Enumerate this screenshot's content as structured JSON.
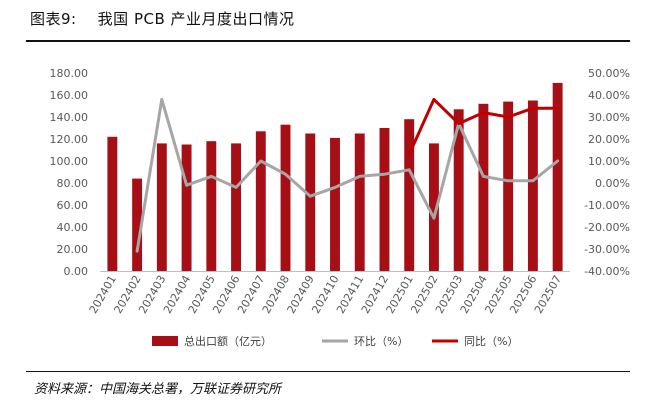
{
  "header": {
    "title": "图表9:    我国 PCB 产业月度出口情况"
  },
  "source": "资料来源：中国海关总署，万联证券研究所",
  "colors": {
    "bar": "#a50f15",
    "mom": "#a6a6a6",
    "yoy": "#c00000",
    "axis_text": "#595959",
    "grid": "#d9d9d9"
  },
  "chart_data": {
    "type": "bar",
    "categories": [
      "202401",
      "202402",
      "202403",
      "202404",
      "202405",
      "202406",
      "202407",
      "202408",
      "202409",
      "202410",
      "202411",
      "202412",
      "202501",
      "202502",
      "202503",
      "202504",
      "202505",
      "202506",
      "202507"
    ],
    "y_left": {
      "ticks": [
        "180.00",
        "160.00",
        "140.00",
        "120.00",
        "100.00",
        "80.00",
        "60.00",
        "40.00",
        "20.00",
        "0.00"
      ],
      "range": [
        0,
        180
      ]
    },
    "y_right": {
      "ticks": [
        "50.00%",
        "40.00%",
        "30.00%",
        "20.00%",
        "10.00%",
        "0.00%",
        "-10.00%",
        "-20.00%",
        "-30.00%",
        "-40.00%"
      ],
      "range": [
        -40,
        50
      ]
    },
    "series": [
      {
        "name": "总出口额（亿元）",
        "kind": "bar",
        "axis": "left",
        "values": [
          122.0,
          84.0,
          116.0,
          115.0,
          118.0,
          116.0,
          127.0,
          133.0,
          125.0,
          121.0,
          125.0,
          130.0,
          138.0,
          116.0,
          147.0,
          152.0,
          154.0,
          155.0,
          171.0
        ]
      },
      {
        "name": "环比（%）",
        "kind": "line",
        "axis": "right",
        "values": [
          null,
          -31.0,
          38.0,
          -1.0,
          3.0,
          -2.0,
          10.0,
          4.0,
          -6.0,
          -2.0,
          3.0,
          4.0,
          6.0,
          -16.0,
          27.0,
          3.0,
          1.0,
          1.0,
          10.0
        ]
      },
      {
        "name": "同比（%）",
        "kind": "line",
        "axis": "right",
        "values": [
          null,
          null,
          null,
          null,
          null,
          null,
          null,
          null,
          null,
          null,
          null,
          null,
          13.0,
          38.0,
          27.0,
          32.0,
          30.0,
          34.0,
          34.0
        ]
      }
    ],
    "legend_position": "bottom-center",
    "grid": false
  }
}
